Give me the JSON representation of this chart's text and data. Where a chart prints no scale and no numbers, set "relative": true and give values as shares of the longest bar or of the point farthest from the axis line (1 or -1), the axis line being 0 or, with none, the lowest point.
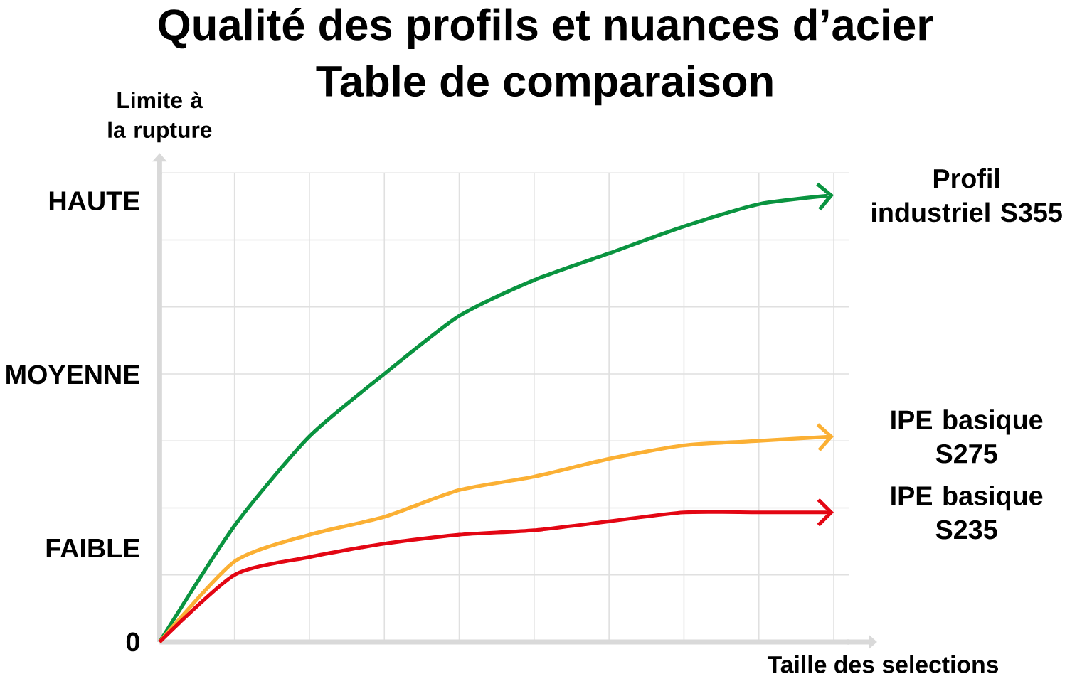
{
  "chart_data": {
    "type": "line",
    "title": "Qualité des profils et nuances d’acier",
    "subtitle": "Table de comparaison",
    "xlabel": "Taille des selections",
    "ylabel": "Limite à la rupture",
    "categories": [
      null,
      null,
      null,
      null,
      null,
      null,
      null,
      null,
      null,
      null
    ],
    "relative": true,
    "grid": true,
    "annotations": [
      "0",
      "FAIBLE",
      "MOYENNE",
      "HAUTE"
    ],
    "series": [
      {
        "name": "Profil industriel S355",
        "color": "#0a9440",
        "values": [
          0,
          0.26,
          0.46,
          0.6,
          0.73,
          0.81,
          0.87,
          0.93,
          0.98,
          1
        ]
      },
      {
        "name": "IPE basique S275",
        "color": "#fbb034",
        "values": [
          0,
          0.18,
          0.24,
          0.28,
          0.34,
          0.37,
          0.41,
          0.44,
          0.45,
          0.46
        ]
      },
      {
        "name": "IPE basique S235",
        "color": "#e30613",
        "values": [
          0,
          0.15,
          0.19,
          0.22,
          0.24,
          0.25,
          0.27,
          0.29,
          0.29,
          0.29
        ]
      }
    ]
  }
}
